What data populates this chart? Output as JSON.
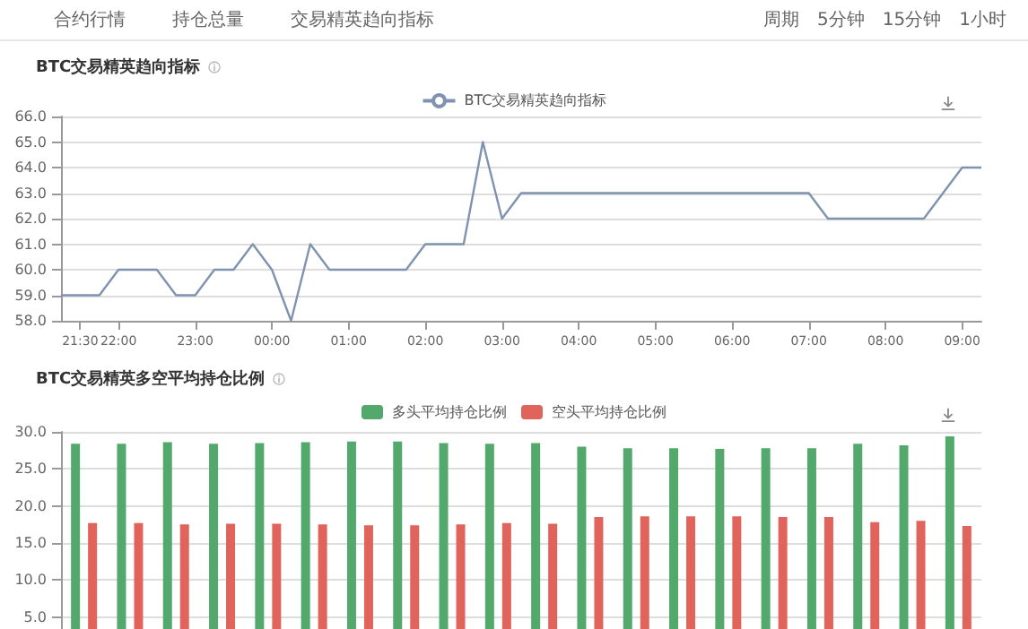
{
  "chart_data": [
    {
      "type": "other",
      "annotations": [
        "合约行情",
        "持仓总量",
        "交易精英趋向指标",
        "周期",
        "5分钟",
        "15分钟",
        "1小时"
      ]
    },
    {
      "type": "line",
      "title": "BTC交易精英趋向指标",
      "legend": "top",
      "marker": "none",
      "grid": "y",
      "line_style": "solid",
      "xlim": [
        "--01-01T21:15",
        "--01-02T09:15"
      ],
      "xticks": [
        {
          "value": "--01-01T21:30",
          "label": "21:30"
        },
        {
          "value": "--01-01T22:00",
          "label": "22:00"
        },
        {
          "value": "--01-01T23:00",
          "label": "23:00"
        },
        {
          "value": "--01-02T00:00",
          "label": "00:00"
        },
        {
          "value": "--01-02T01:00",
          "label": "01:00"
        },
        {
          "value": "--01-02T02:00",
          "label": "02:00"
        },
        {
          "value": "--01-02T03:00",
          "label": "03:00"
        },
        {
          "value": "--01-02T04:00",
          "label": "04:00"
        },
        {
          "value": "--01-02T05:00",
          "label": "05:00"
        },
        {
          "value": "--01-02T06:00",
          "label": "06:00"
        },
        {
          "value": "--01-02T07:00",
          "label": "07:00"
        },
        {
          "value": "--01-02T08:00",
          "label": "08:00"
        },
        {
          "value": "--01-02T09:00",
          "label": "09:00"
        }
      ],
      "ylim": [
        58,
        66
      ],
      "yticks": [
        {
          "value": 58,
          "label": "58.0"
        },
        {
          "value": 59,
          "label": "59.0"
        },
        {
          "value": 60,
          "label": "60.0"
        },
        {
          "value": 61,
          "label": "61.0"
        },
        {
          "value": 62,
          "label": "62.0"
        },
        {
          "value": 63,
          "label": "63.0"
        },
        {
          "value": 64,
          "label": "64.0"
        },
        {
          "value": 65,
          "label": "65.0"
        },
        {
          "value": 66,
          "label": "66.0"
        }
      ],
      "series": [
        {
          "name": "BTC交易精英趋向指标",
          "color": "#7f93b0",
          "x": [
            "--01-01T21:15",
            "--01-01T21:45",
            "--01-01T22:00",
            "--01-01T22:30",
            "--01-01T22:45",
            "--01-01T23:00",
            "--01-01T23:15",
            "--01-01T23:30",
            "--01-01T23:45",
            "--01-02T00:00",
            "--01-02T00:15",
            "--01-02T00:30",
            "--01-02T00:45",
            "--01-02T01:45",
            "--01-02T02:00",
            "--01-02T02:30",
            "--01-02T02:45",
            "--01-02T03:00",
            "--01-02T03:15",
            "--01-02T07:00",
            "--01-02T07:15",
            "--01-02T08:30",
            "--01-02T09:00",
            "--01-02T09:15"
          ],
          "values": [
            59,
            59,
            60,
            60,
            59,
            59,
            60,
            60,
            61,
            60,
            58,
            61,
            60,
            60,
            61,
            61,
            65,
            62,
            63,
            63,
            62,
            62,
            64,
            64
          ]
        }
      ]
    },
    {
      "type": "bar",
      "title": "BTC交易精英多空平均持仓比例",
      "legend": "top",
      "grid": "y",
      "categories": [
        null,
        null,
        null,
        null,
        null,
        null,
        null,
        null,
        null,
        null,
        null,
        null,
        null,
        null,
        null,
        null,
        null,
        null,
        null,
        null
      ],
      "ylim": [
        0,
        30
      ],
      "yticks": [
        {
          "value": 0,
          "label": null
        },
        {
          "value": 5,
          "label": "5.0"
        },
        {
          "value": 10,
          "label": "10.0"
        },
        {
          "value": 15,
          "label": "15.0"
        },
        {
          "value": 20,
          "label": "20.0"
        },
        {
          "value": 25,
          "label": "25.0"
        },
        {
          "value": 30,
          "label": "30.0"
        }
      ],
      "series": [
        {
          "name": "多头平均持仓比例",
          "color": "#52a96b",
          "values": [
            28.4,
            28.4,
            28.6,
            28.4,
            28.5,
            28.6,
            28.7,
            28.7,
            28.5,
            28.4,
            28.5,
            28.0,
            27.8,
            27.8,
            27.7,
            27.8,
            27.8,
            28.4,
            28.2,
            29.4
          ]
        },
        {
          "name": "空头平均持仓比例",
          "color": "#e0645c",
          "values": [
            17.7,
            17.7,
            17.5,
            17.6,
            17.6,
            17.5,
            17.4,
            17.4,
            17.5,
            17.7,
            17.6,
            18.5,
            18.6,
            18.6,
            18.6,
            18.5,
            18.5,
            17.8,
            18.0,
            17.3
          ]
        }
      ]
    }
  ]
}
